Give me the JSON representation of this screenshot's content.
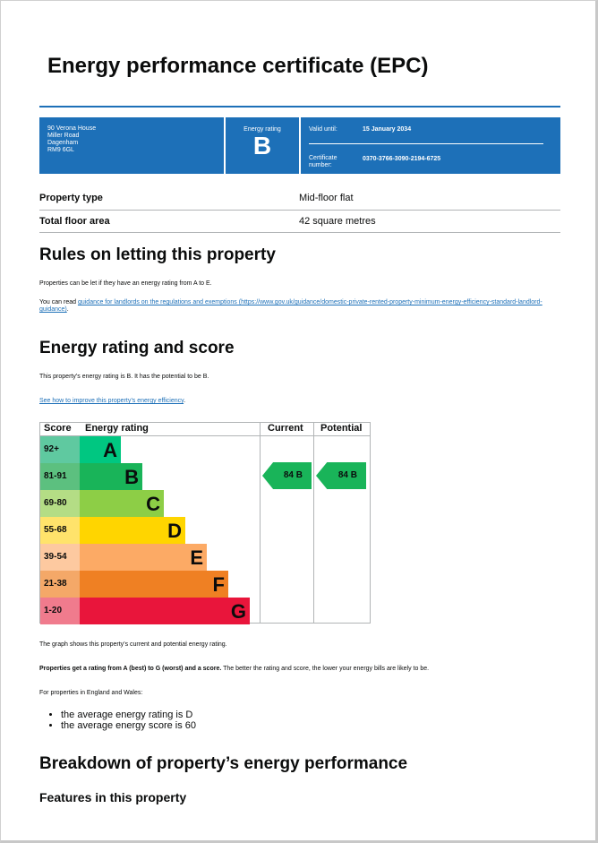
{
  "title": "Energy performance certificate (EPC)",
  "banner": {
    "address": [
      "90 Verona House",
      "Miller Road",
      "Dagenham",
      "RM9 6GL"
    ],
    "rating_label": "Energy rating",
    "rating": "B",
    "valid_label": "Valid until:",
    "valid_value": "15 January 2034",
    "cert_label": "Certificate number:",
    "cert_value": "0370-3766-3090-2194-6725"
  },
  "property": [
    {
      "label": "Property type",
      "value": "Mid-floor flat"
    },
    {
      "label": "Total floor area",
      "value": "42 square metres"
    }
  ],
  "letting": {
    "heading": "Rules on letting this property",
    "text": "Properties can be let if they have an energy rating from A to E.",
    "read_prefix": "You can read ",
    "link": "guidance for landlords on the regulations and exemptions (https://www.gov.uk/guidance/domestic-private-rented-property-minimum-energy-efficiency-standard-landlord-guidance)",
    "suffix": "."
  },
  "rating_section": {
    "heading": "Energy rating and score",
    "text": "This property’s energy rating is B. It has the potential to be B.",
    "link": "See how to improve this property’s energy efficiency",
    "suffix": "."
  },
  "chart_data": {
    "type": "table",
    "headers": [
      "Score",
      "Energy rating",
      "Current",
      "Potential"
    ],
    "bands": [
      {
        "score": "92+",
        "letter": "A",
        "color": "#00c781"
      },
      {
        "score": "81-91",
        "letter": "B",
        "color": "#19b459"
      },
      {
        "score": "69-80",
        "letter": "C",
        "color": "#8dce46"
      },
      {
        "score": "55-68",
        "letter": "D",
        "color": "#ffd500"
      },
      {
        "score": "39-54",
        "letter": "E",
        "color": "#fcaa65"
      },
      {
        "score": "21-38",
        "letter": "F",
        "color": "#ef8023"
      },
      {
        "score": "1-20",
        "letter": "G",
        "color": "#e9153b"
      }
    ],
    "current": {
      "score": "84",
      "letter": "B",
      "text": "84  B"
    },
    "potential": {
      "score": "84",
      "letter": "B",
      "text": "84  B"
    }
  },
  "after": {
    "graph_text": "The graph shows this property’s current and potential energy rating.",
    "bold": "Properties get a rating from A (best) to G (worst) and a score.",
    "rest": " The better the rating and score, the lower your energy bills are likely to be.",
    "region": "For properties in England and Wales:",
    "bullets": [
      "the average energy rating is D",
      "the average energy score is 60"
    ]
  },
  "breakdown": {
    "heading": "Breakdown of property’s energy performance",
    "sub": "Features in this property"
  }
}
